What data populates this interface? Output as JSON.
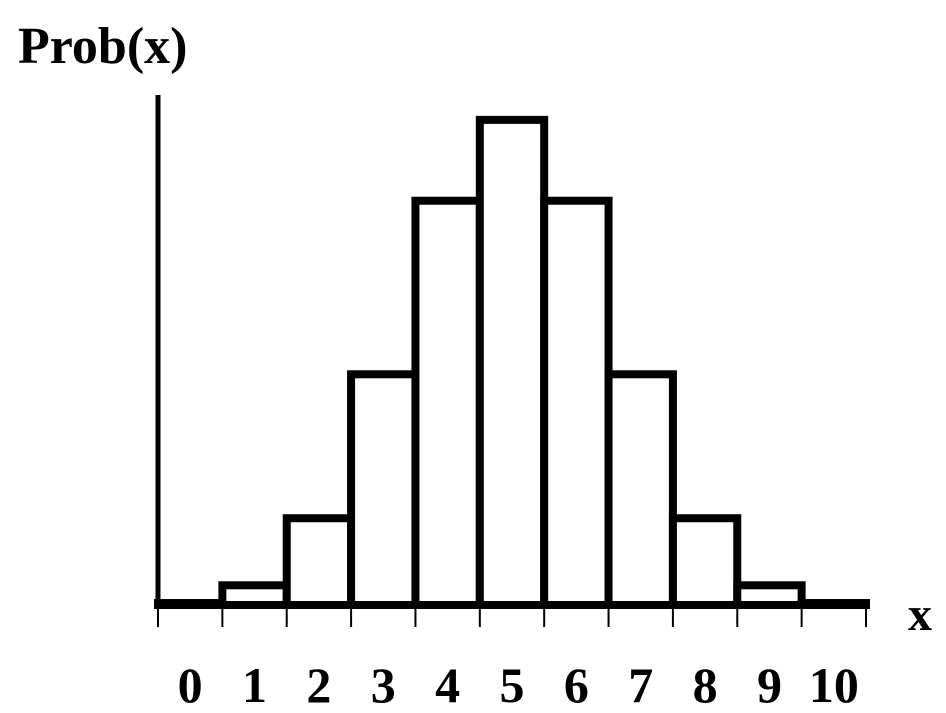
{
  "chart_data": {
    "type": "bar",
    "title": "",
    "ylabel": "Prob(x)",
    "xlabel": "x",
    "categories": [
      "0",
      "1",
      "2",
      "3",
      "4",
      "5",
      "6",
      "7",
      "8",
      "9",
      "10"
    ],
    "values": [
      0.001,
      0.01,
      0.044,
      0.117,
      0.205,
      0.246,
      0.205,
      0.117,
      0.044,
      0.01,
      0.001
    ],
    "ylim": [
      0,
      0.25
    ],
    "grid": false,
    "legend": "none",
    "bar_fill": "#ffffff",
    "bar_stroke": "#000000"
  }
}
